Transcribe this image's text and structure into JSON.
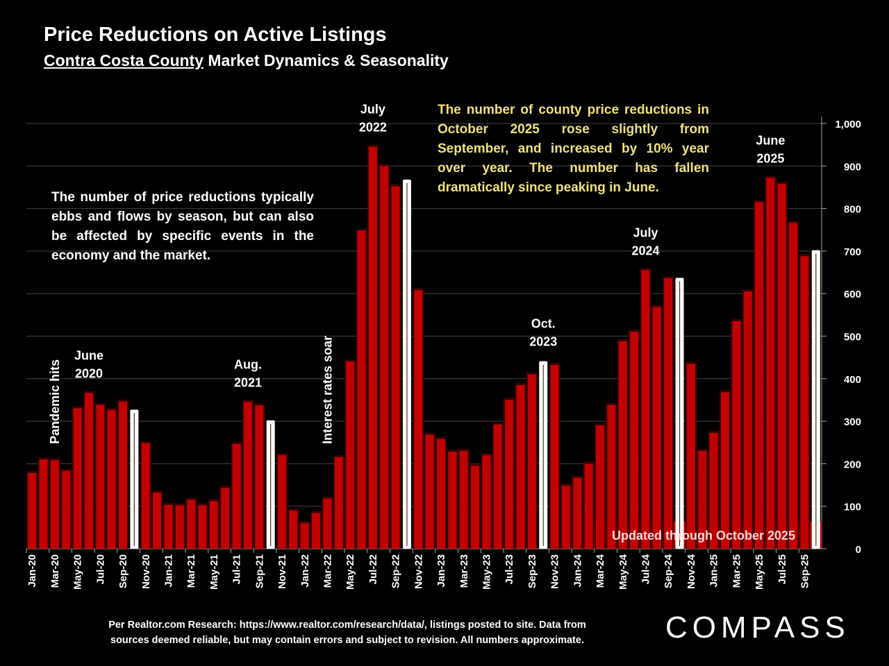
{
  "title": "Price Reductions on Active Listings",
  "subtitle_underlined": "Contra Costa County",
  "subtitle_rest": " Market Dynamics & Seasonality",
  "note_left": "The number of price reductions typically ebbs and flows by season, but can also be affected by specific events in the economy and the market.",
  "note_right": "The number of county price reductions in October 2025 rose slightly from September, and increased by 10% year over year. The number has fallen dramatically since peaking in June.",
  "updated_badge": "Updated through October 2025",
  "footer_line1": "Per Realtor.com Research:  https://www.realtor.com/research/data/, listings posted to site. Data from",
  "footer_line2": "sources deemed reliable, but may contain errors and subject to revision. All numbers approximate.",
  "logo": "COMPASS",
  "colors": {
    "bar": "#c00000",
    "highlight": "#ffffff",
    "note": "#f0e080",
    "badge": "#c00000"
  },
  "chart_data": {
    "type": "bar",
    "title": "Price Reductions on Active Listings",
    "ylim": [
      0,
      1000
    ],
    "yticks": [
      0,
      100,
      200,
      300,
      400,
      500,
      600,
      700,
      800,
      900,
      1000
    ],
    "ytick_labels": [
      "0",
      "100",
      "200",
      "300",
      "400",
      "500",
      "600",
      "700",
      "800",
      "900",
      "1,000"
    ],
    "grid": true,
    "y_axis_side": "right",
    "categories": [
      "Jan-20",
      "Feb-20",
      "Mar-20",
      "Apr-20",
      "May-20",
      "Jun-20",
      "Jul-20",
      "Aug-20",
      "Sep-20",
      "Oct-20",
      "Nov-20",
      "Dec-20",
      "Jan-21",
      "Feb-21",
      "Mar-21",
      "Apr-21",
      "May-21",
      "Jun-21",
      "Jul-21",
      "Aug-21",
      "Sep-21",
      "Oct-21",
      "Nov-21",
      "Dec-21",
      "Jan-22",
      "Feb-22",
      "Mar-22",
      "Apr-22",
      "May-22",
      "Jun-22",
      "Jul-22",
      "Aug-22",
      "Sep-22",
      "Oct-22",
      "Nov-22",
      "Dec-22",
      "Jan-23",
      "Feb-23",
      "Mar-23",
      "Apr-23",
      "May-23",
      "Jun-23",
      "Jul-23",
      "Aug-23",
      "Sep-23",
      "Oct-23",
      "Nov-23",
      "Dec-23",
      "Jan-24",
      "Feb-24",
      "Mar-24",
      "Apr-24",
      "May-24",
      "Jun-24",
      "Jul-24",
      "Aug-24",
      "Sep-24",
      "Oct-24",
      "Nov-24",
      "Dec-24",
      "Jan-25",
      "Feb-25",
      "Mar-25",
      "Apr-25",
      "May-25",
      "Jun-25",
      "Jul-25",
      "Aug-25",
      "Sep-25",
      "Oct-25"
    ],
    "values": [
      178,
      210,
      208,
      183,
      330,
      366,
      338,
      326,
      346,
      327,
      248,
      132,
      103,
      102,
      115,
      102,
      112,
      143,
      246,
      345,
      337,
      302,
      220,
      90,
      60,
      84,
      118,
      215,
      440,
      748,
      945,
      900,
      852,
      868,
      608,
      268,
      258,
      228,
      230,
      195,
      220,
      292,
      350,
      385,
      410,
      441,
      432,
      148,
      167,
      200,
      290,
      338,
      488,
      510,
      655,
      568,
      636,
      637,
      435,
      230,
      272,
      368,
      535,
      605,
      815,
      872,
      858,
      766,
      688,
      702
    ],
    "highlighted": [
      "Oct-20",
      "Oct-21",
      "Oct-22",
      "Oct-23",
      "Oct-24",
      "Oct-25"
    ],
    "annotations": [
      {
        "lines": [
          "Pandemic hits"
        ],
        "at": "Mar-20",
        "rotated": true
      },
      {
        "lines": [
          "June",
          "2020"
        ],
        "at": "Jun-20"
      },
      {
        "lines": [
          "Aug.",
          "2021"
        ],
        "at": "Aug-21"
      },
      {
        "lines": [
          "Interest rates soar"
        ],
        "at": "Mar-22",
        "rotated": true
      },
      {
        "lines": [
          "July",
          "2022"
        ],
        "at": "Jul-22"
      },
      {
        "lines": [
          "Oct.",
          "2023"
        ],
        "at": "Oct-23"
      },
      {
        "lines": [
          "July",
          "2024"
        ],
        "at": "Jul-24"
      },
      {
        "lines": [
          "June",
          "2025"
        ],
        "at": "Jun-25"
      }
    ]
  }
}
